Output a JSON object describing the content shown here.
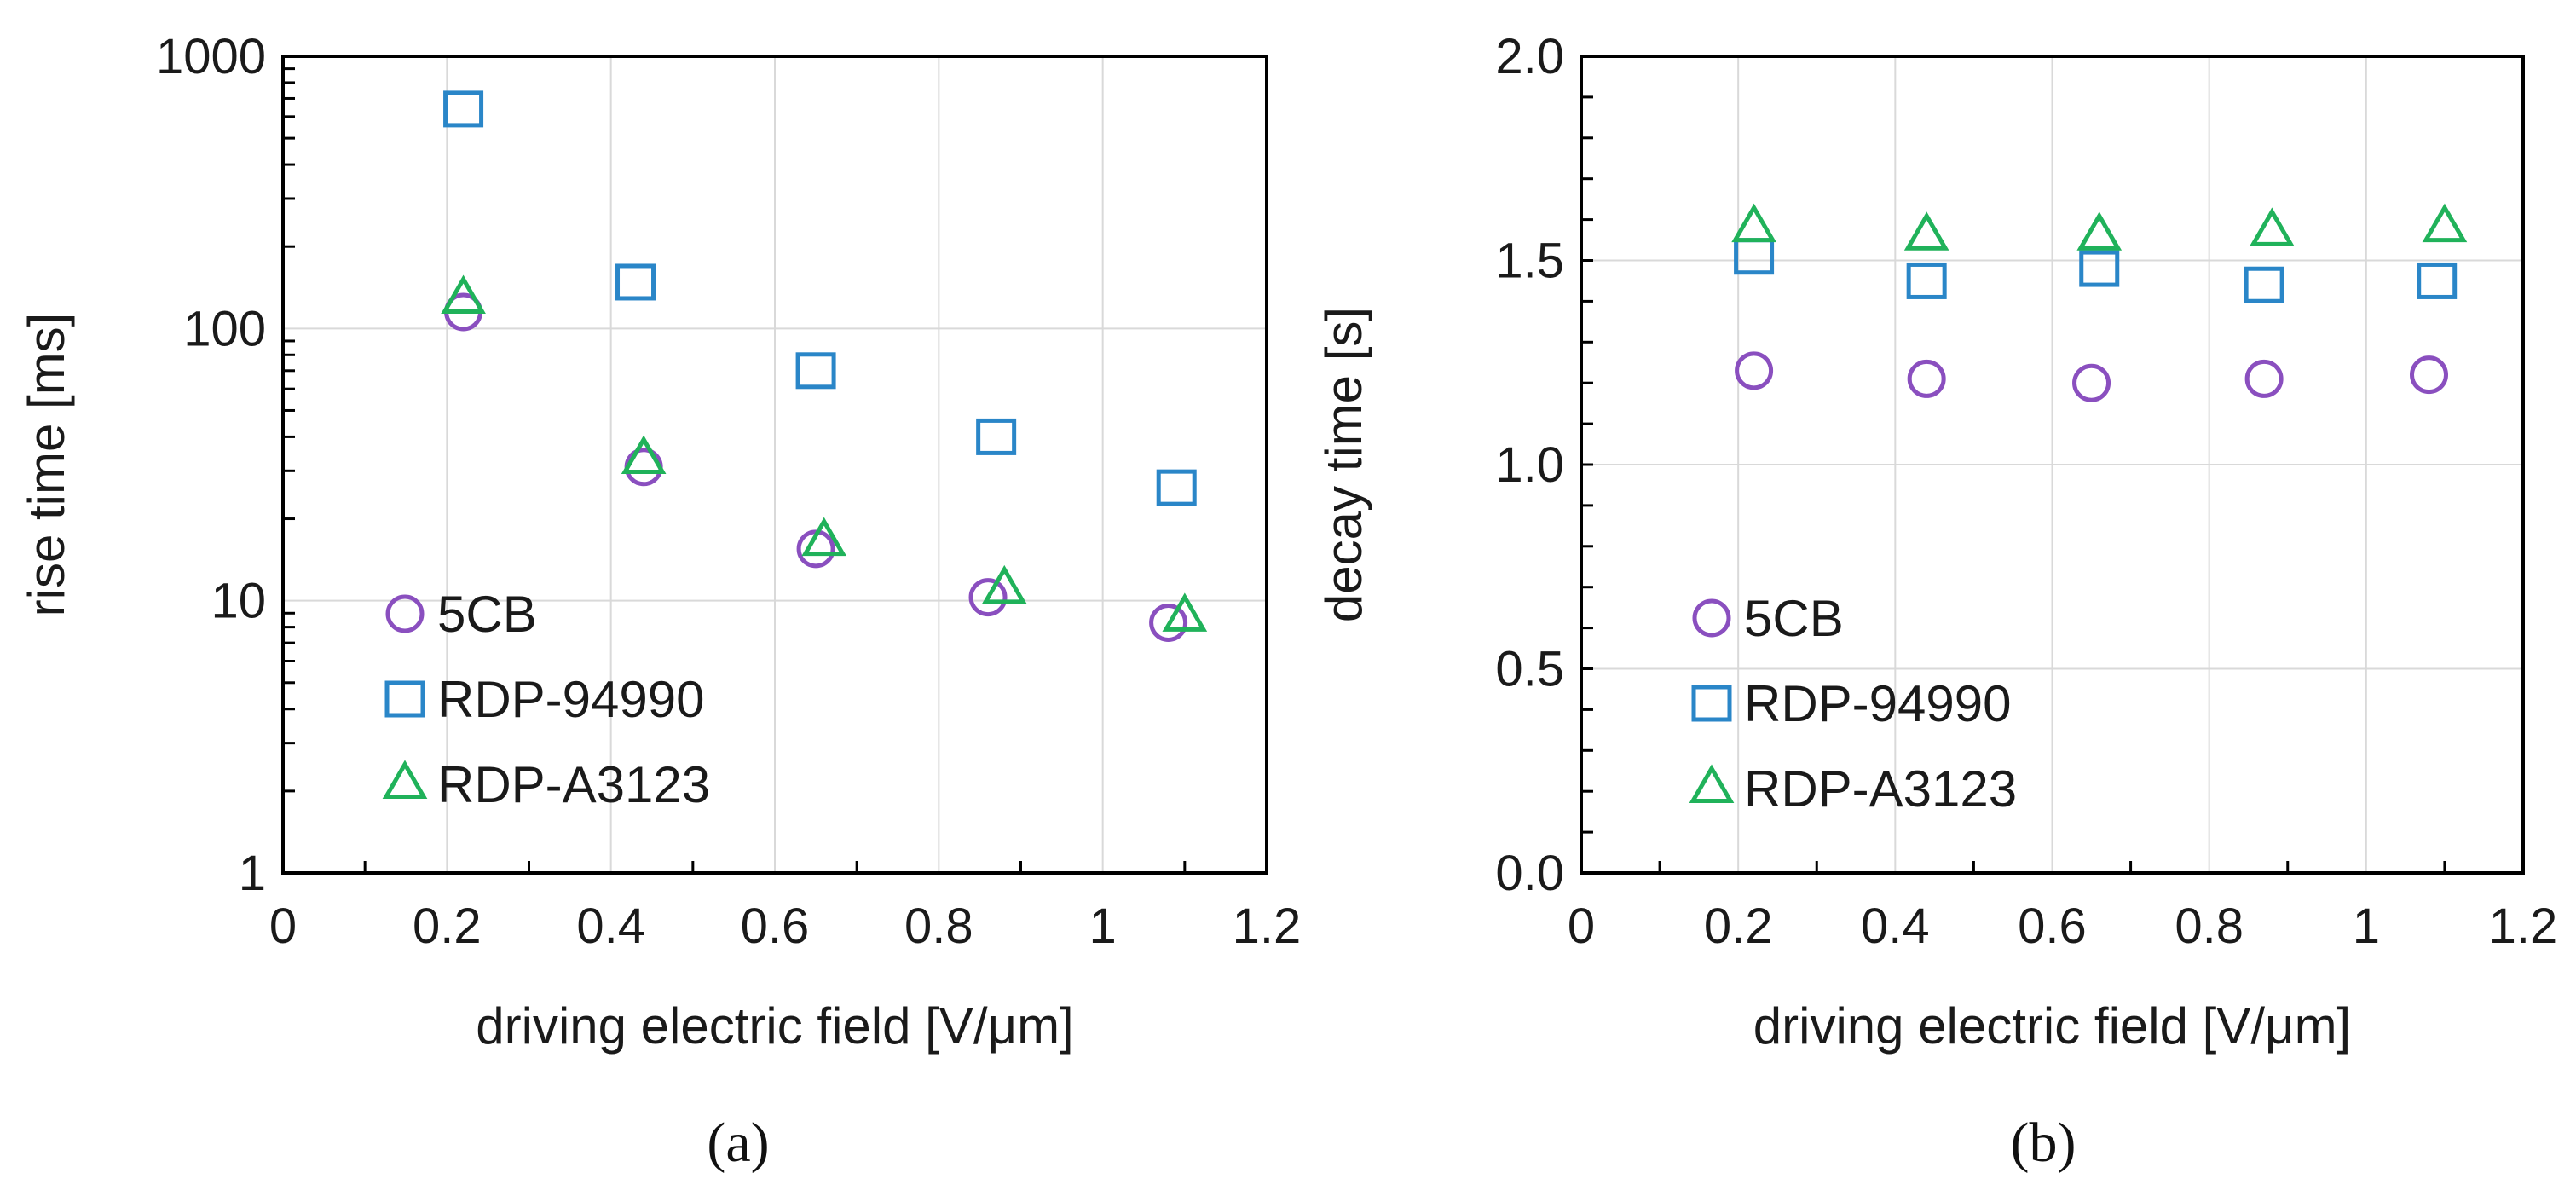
{
  "colors": {
    "5CB": "#8a4fbf",
    "RDP-94990": "#2a86c8",
    "RDP-A3123": "#20b25a",
    "grid": "#d9d9d9",
    "axis": "#000000"
  },
  "chart_data": [
    {
      "type": "scatter",
      "panel_label": "(a)",
      "xlabel": "driving electric field [V/μm]",
      "ylabel": "rise time [ms]",
      "xlim": [
        0,
        1.2
      ],
      "ylim": [
        1,
        1000
      ],
      "yscale": "log",
      "xticks": [
        "0",
        "0.2",
        "0.4",
        "0.6",
        "0.8",
        "1",
        "1.2"
      ],
      "yticks": [
        "1",
        "10",
        "100",
        "1000"
      ],
      "grid": true,
      "legend_position": "bottom-left",
      "series": [
        {
          "name": "5CB",
          "marker": "circle",
          "x": [
            0.22,
            0.44,
            0.65,
            0.86,
            1.08
          ],
          "y": [
            115,
            31,
            15.5,
            10.3,
            8.3
          ]
        },
        {
          "name": "RDP-94990",
          "marker": "square",
          "x": [
            0.22,
            0.43,
            0.65,
            0.87,
            1.09
          ],
          "y": [
            640,
            148,
            70,
            40,
            26
          ]
        },
        {
          "name": "RDP-A3123",
          "marker": "triangle",
          "x": [
            0.22,
            0.44,
            0.66,
            0.88,
            1.1
          ],
          "y": [
            128,
            33,
            16.5,
            11,
            8.7
          ]
        }
      ]
    },
    {
      "type": "scatter",
      "panel_label": "(b)",
      "xlabel": "driving electric field [V/μm]",
      "ylabel": "decay time [s]",
      "xlim": [
        0,
        1.2
      ],
      "ylim": [
        0,
        2.0
      ],
      "yscale": "linear",
      "xticks": [
        "0",
        "0.2",
        "0.4",
        "0.6",
        "0.8",
        "1",
        "1.2"
      ],
      "yticks": [
        "0.0",
        "0.5",
        "1.0",
        "1.5",
        "2.0"
      ],
      "grid": true,
      "legend_position": "bottom-left",
      "series": [
        {
          "name": "5CB",
          "marker": "circle",
          "x": [
            0.22,
            0.44,
            0.65,
            0.87,
            1.08
          ],
          "y": [
            1.23,
            1.21,
            1.2,
            1.21,
            1.22
          ]
        },
        {
          "name": "RDP-94990",
          "marker": "square",
          "x": [
            0.22,
            0.44,
            0.66,
            0.87,
            1.09
          ],
          "y": [
            1.51,
            1.45,
            1.48,
            1.44,
            1.45
          ]
        },
        {
          "name": "RDP-A3123",
          "marker": "triangle",
          "x": [
            0.22,
            0.44,
            0.66,
            0.88,
            1.1
          ],
          "y": [
            1.58,
            1.56,
            1.56,
            1.57,
            1.58
          ]
        }
      ]
    }
  ]
}
